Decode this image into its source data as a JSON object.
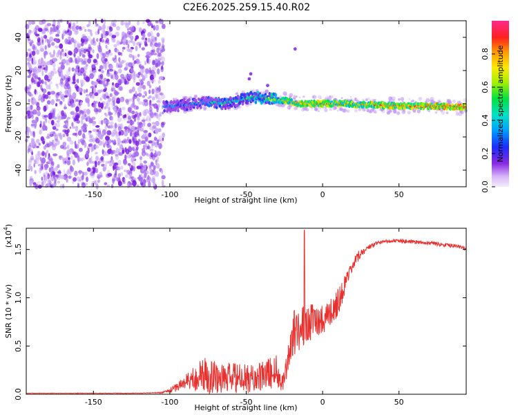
{
  "title": "C2E6.2025.259.15.40.R02",
  "colors": {
    "snr_line": "#e8302e",
    "axis": "#000000",
    "background": "#ffffff",
    "low_density_point": "#c9a8f5",
    "high_density_point": "#7a1ee0"
  },
  "chart_data": [
    {
      "type": "heatmap",
      "name": "spectrogram",
      "xlabel": "Height of straight line (km)",
      "ylabel": "Frequency (Hz)",
      "xlim": [
        -194,
        94
      ],
      "ylim": [
        -50,
        50
      ],
      "xticks": [
        -150,
        -100,
        -50,
        0,
        50
      ],
      "yticks": [
        -40,
        -20,
        0,
        20,
        40
      ],
      "colorbar": {
        "label": "Normalized spectral amplitude",
        "range": [
          0,
          1
        ],
        "ticks": [
          "0.0",
          "0.2",
          "0.4",
          "0.6",
          "0.8"
        ]
      },
      "noise_region": {
        "x_range": [
          -194,
          -104
        ],
        "frequency_range": [
          -50,
          50
        ],
        "amplitude": 0.1
      },
      "ridge": [
        {
          "x": -104,
          "freq": -2,
          "amplitude": 0.25
        },
        {
          "x": -95,
          "freq": -1,
          "amplitude": 0.3
        },
        {
          "x": -85,
          "freq": 0,
          "amplitude": 0.35
        },
        {
          "x": -75,
          "freq": 1,
          "amplitude": 0.4
        },
        {
          "x": -65,
          "freq": 0,
          "amplitude": 0.45
        },
        {
          "x": -55,
          "freq": 2,
          "amplitude": 0.45
        },
        {
          "x": -45,
          "freq": 4,
          "amplitude": 0.5
        },
        {
          "x": -35,
          "freq": 3,
          "amplitude": 0.55
        },
        {
          "x": -25,
          "freq": 2,
          "amplitude": 0.75
        },
        {
          "x": -15,
          "freq": 0,
          "amplitude": 0.85
        },
        {
          "x": -5,
          "freq": 0,
          "amplitude": 0.8
        },
        {
          "x": 5,
          "freq": 0,
          "amplitude": 0.85
        },
        {
          "x": 15,
          "freq": 0,
          "amplitude": 0.8
        },
        {
          "x": 25,
          "freq": -0.5,
          "amplitude": 0.8
        },
        {
          "x": 40,
          "freq": -1,
          "amplitude": 0.85
        },
        {
          "x": 60,
          "freq": -1.5,
          "amplitude": 0.9
        },
        {
          "x": 80,
          "freq": -1.5,
          "amplitude": 0.95
        },
        {
          "x": 94,
          "freq": -2,
          "amplitude": 0.95
        }
      ],
      "spikes": [
        {
          "x": -48,
          "freq": 15
        },
        {
          "x": -47,
          "freq": 18
        },
        {
          "x": -36,
          "freq": 11
        },
        {
          "x": -18,
          "freq": 33
        }
      ]
    },
    {
      "type": "line",
      "name": "snr",
      "xlabel": "Height of straight line (km)",
      "ylabel": "SNR (10 * v/v)",
      "scale_label": "(x10",
      "scale_exponent": "4",
      "scale_suffix": ")",
      "xlim": [
        -194,
        94
      ],
      "ylim": [
        0,
        1.72
      ],
      "xticks": [
        -150,
        -100,
        -50,
        0,
        50
      ],
      "yticks": [
        "0.0",
        "0.5",
        "1.0",
        "1.5"
      ],
      "envelope": {
        "x": [
          -194,
          -120,
          -105,
          -100,
          -95,
          -90,
          -85,
          -80,
          -75,
          -70,
          -65,
          -60,
          -55,
          -50,
          -45,
          -40,
          -35,
          -30,
          -28,
          -26,
          -24,
          -22,
          -20,
          -15,
          -10,
          -5,
          0,
          5,
          10,
          15,
          20,
          25,
          30,
          35,
          40,
          45,
          50,
          60,
          70,
          80,
          90,
          94
        ],
        "base": [
          0.01,
          0.01,
          0.015,
          0.03,
          0.06,
          0.09,
          0.11,
          0.12,
          0.12,
          0.11,
          0.1,
          0.1,
          0.1,
          0.1,
          0.1,
          0.12,
          0.15,
          0.17,
          0.1,
          0.1,
          0.2,
          0.35,
          0.5,
          0.6,
          0.65,
          0.7,
          0.72,
          0.78,
          0.9,
          1.1,
          1.3,
          1.45,
          1.5,
          1.55,
          1.58,
          1.58,
          1.58,
          1.57,
          1.56,
          1.54,
          1.52,
          1.5
        ],
        "amp": [
          0.004,
          0.006,
          0.01,
          0.05,
          0.1,
          0.18,
          0.25,
          0.35,
          0.4,
          0.35,
          0.3,
          0.35,
          0.3,
          0.3,
          0.3,
          0.3,
          0.35,
          0.35,
          0.2,
          0.2,
          0.3,
          0.4,
          0.5,
          0.5,
          0.4,
          0.35,
          0.3,
          0.3,
          0.3,
          0.2,
          0.15,
          0.1,
          0.06,
          0.05,
          0.04,
          0.04,
          0.04,
          0.04,
          0.04,
          0.04,
          0.04,
          0.04
        ]
      },
      "peak": {
        "x": -12,
        "y": 1.7
      }
    }
  ]
}
